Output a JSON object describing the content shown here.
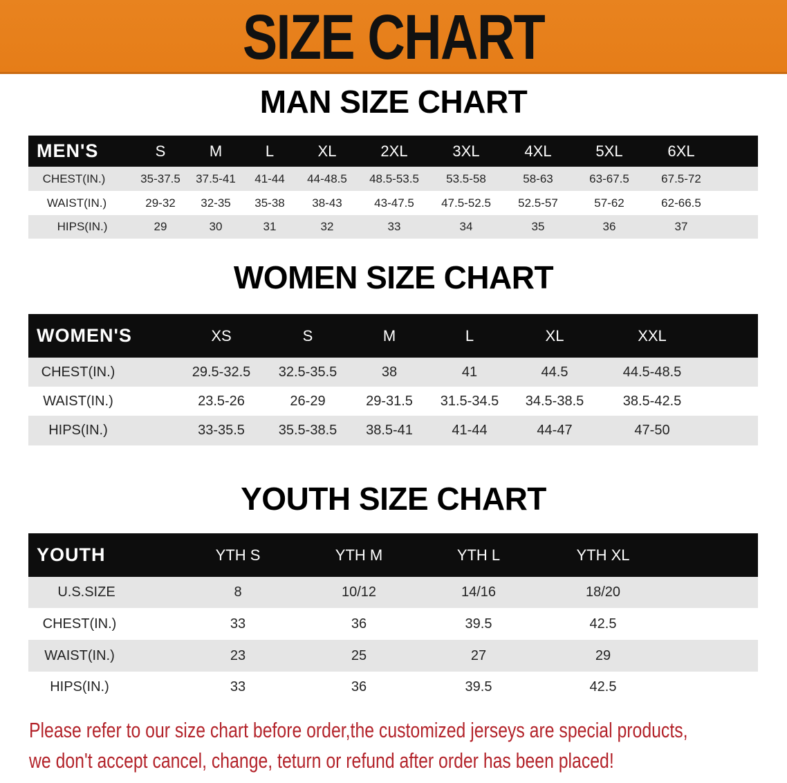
{
  "banner_title": "SIZE CHART",
  "colors": {
    "banner": "#e8801e",
    "header_row": "#0d0d0d",
    "stripe": "#e5e5e5",
    "note": "#b3232a"
  },
  "men": {
    "title": "MAN SIZE CHART",
    "header": [
      "MEN'S",
      "S",
      "M",
      "L",
      "XL",
      "2XL",
      "3XL",
      "4XL",
      "5XL",
      "6XL"
    ],
    "rows": [
      [
        "CHEST(IN.)",
        "35-37.5",
        "37.5-41",
        "41-44",
        "44-48.5",
        "48.5-53.5",
        "53.5-58",
        "58-63",
        "63-67.5",
        "67.5-72"
      ],
      [
        "WAIST(IN.)",
        "29-32",
        "32-35",
        "35-38",
        "38-43",
        "43-47.5",
        "47.5-52.5",
        "52.5-57",
        "57-62",
        "62-66.5"
      ],
      [
        "HIPS(IN.)",
        "29",
        "30",
        "31",
        "32",
        "33",
        "34",
        "35",
        "36",
        "37"
      ]
    ]
  },
  "women": {
    "title": "WOMEN SIZE CHART",
    "header": [
      "WOMEN'S",
      "XS",
      "S",
      "M",
      "L",
      "XL",
      "XXL"
    ],
    "rows": [
      [
        "CHEST(IN.)",
        "29.5-32.5",
        "32.5-35.5",
        "38",
        "41",
        "44.5",
        "44.5-48.5"
      ],
      [
        "WAIST(IN.)",
        "23.5-26",
        "26-29",
        "29-31.5",
        "31.5-34.5",
        "34.5-38.5",
        "38.5-42.5"
      ],
      [
        "HIPS(IN.)",
        "33-35.5",
        "35.5-38.5",
        "38.5-41",
        "41-44",
        "44-47",
        "47-50"
      ]
    ]
  },
  "youth": {
    "title": "YOUTH SIZE CHART",
    "header": [
      "YOUTH",
      "YTH S",
      "YTH M",
      "YTH L",
      "YTH XL"
    ],
    "rows": [
      [
        "U.S.SIZE",
        "8",
        "10/12",
        "14/16",
        "18/20"
      ],
      [
        "CHEST(IN.)",
        "33",
        "36",
        "39.5",
        "42.5"
      ],
      [
        "WAIST(IN.)",
        "23",
        "25",
        "27",
        "29"
      ],
      [
        "HIPS(IN.)",
        "33",
        "36",
        "39.5",
        "42.5"
      ]
    ]
  },
  "notice": [
    "Please refer to our size chart before order,the customized jerseys are special products,",
    "we don't accept cancel, change, teturn or refund after order has been placed!"
  ]
}
